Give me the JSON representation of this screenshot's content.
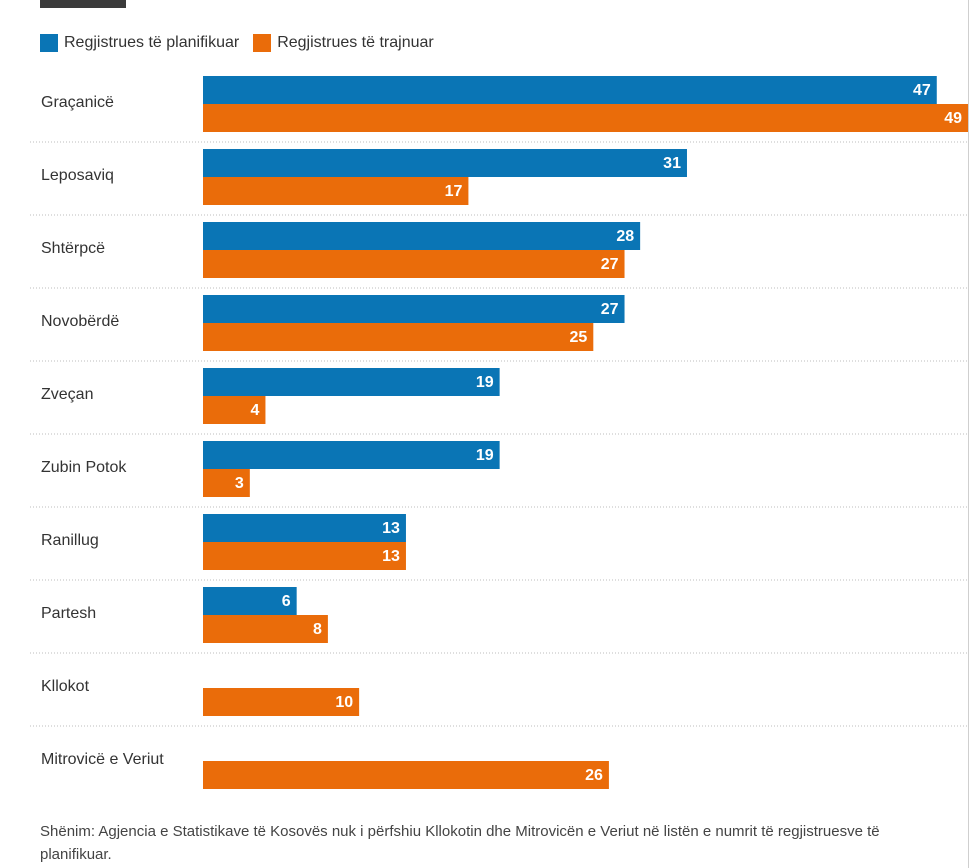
{
  "chart_data": {
    "type": "bar",
    "orientation": "horizontal",
    "categories": [
      "Graçanicë",
      "Leposaviq",
      "Shtërpcë",
      "Novobërdë",
      "Zveçan",
      "Zubin Potok",
      "Ranillug",
      "Partesh",
      "Kllokot",
      "Mitrovicë e Veriut"
    ],
    "series": [
      {
        "name": "Regjistrues të planifikuar",
        "color": "#0a75b5",
        "values": [
          47,
          31,
          28,
          27,
          19,
          19,
          13,
          6,
          null,
          null
        ]
      },
      {
        "name": "Regjistrues të trajnuar",
        "color": "#ea6c0a",
        "values": [
          49,
          17,
          27,
          25,
          4,
          3,
          13,
          8,
          10,
          26
        ]
      }
    ],
    "xlim": [
      0,
      49
    ],
    "legend_position": "top-left",
    "grid": false
  },
  "note": "Shënim: Agjencia e Statistikave të Kosovës nuk i përfshiu Kllokotin dhe Mitrovicën e Veriut në listën e numrit të regjistruesve të planifikuar."
}
